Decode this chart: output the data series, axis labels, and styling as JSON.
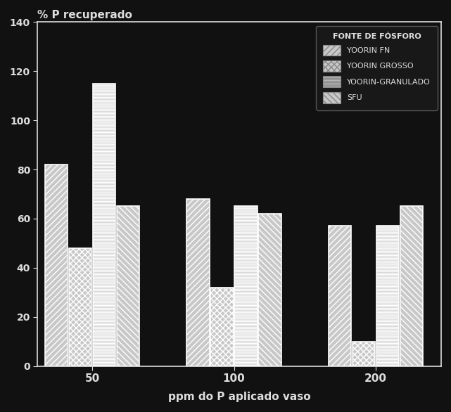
{
  "title": "% P recuperado",
  "xlabel": "ppm do P aplicado vaso",
  "groups": [
    "50",
    "100",
    "200"
  ],
  "series": [
    "YOORIN FN",
    "YOORIN GROSSO",
    "YOORIN-GRANULADO",
    "SFU"
  ],
  "legend_title": "FONTE DE FÓSFORO",
  "values": {
    "50": [
      82,
      48,
      115,
      65
    ],
    "100": [
      68,
      32,
      65,
      62
    ],
    "200": [
      57,
      10,
      57,
      65
    ]
  },
  "ylim": [
    0,
    140
  ],
  "yticks": [
    0,
    20,
    40,
    60,
    80,
    100,
    120,
    140
  ],
  "hatches": [
    "/",
    "x",
    "--",
    "\\"
  ],
  "bar_facecolor": "#c8c8c8",
  "bar_edgecolor": "#ffffff",
  "bg_color": "#111111",
  "plot_bg_color": "#111111",
  "text_color": "#dddddd",
  "bar_width": 0.22,
  "group_positions": [
    0.5,
    1.8,
    3.1
  ]
}
